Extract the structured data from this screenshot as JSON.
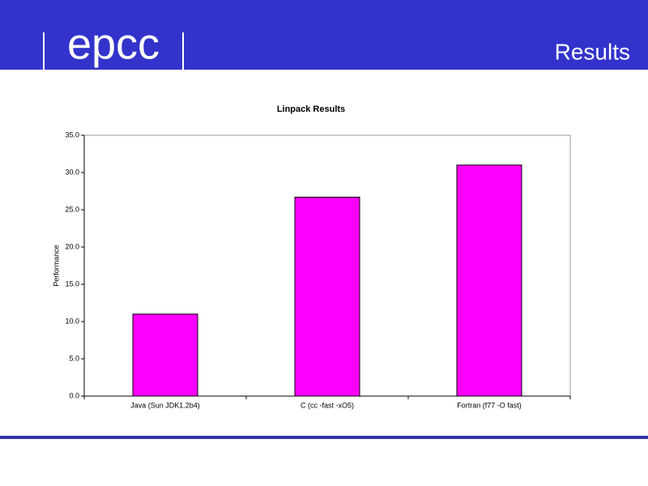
{
  "header": {
    "logo": "epcc",
    "title": "Results"
  },
  "chart_data": {
    "type": "bar",
    "title": "Linpack Results",
    "y_label": "Performance",
    "categories": [
      "Java (Sun JDK1.2b4)",
      "C (cc -fast -xO5)",
      "Fortran (f77 -O fast)"
    ],
    "values": [
      11.0,
      26.7,
      31.0
    ],
    "color": "#ff00ff",
    "ylim": [
      0,
      35
    ],
    "yticks": [
      {
        "value": 0,
        "label": "0.0"
      },
      {
        "value": 5,
        "label": "5.0"
      },
      {
        "value": 10,
        "label": "10.0"
      },
      {
        "value": 15,
        "label": "15.0"
      },
      {
        "value": 20,
        "label": "20.0"
      },
      {
        "value": 25,
        "label": "25.0"
      },
      {
        "value": 30,
        "label": "30.0"
      },
      {
        "value": 35,
        "label": "35.0"
      }
    ],
    "grid": false
  }
}
